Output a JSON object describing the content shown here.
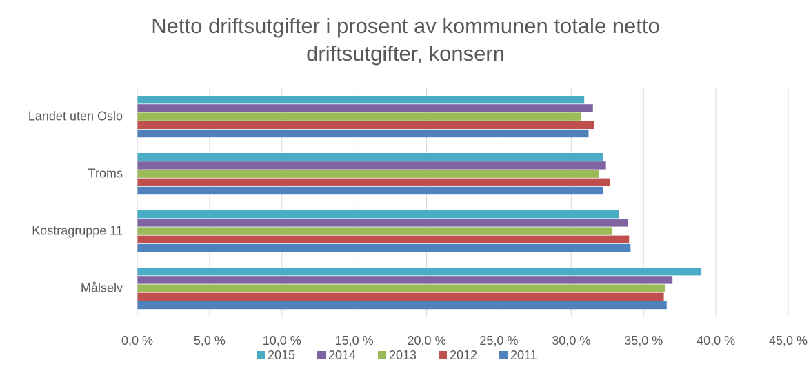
{
  "chart_data": {
    "type": "hbar",
    "title": [
      "Netto driftsutgifter i prosent av kommunen totale netto",
      "driftsutgifter, konsern"
    ],
    "categories": [
      "Landet uten Oslo",
      "Troms",
      "Kostragruppe 11",
      "Målselv"
    ],
    "series": [
      {
        "name": "2015",
        "color": "#4bacc6",
        "values": [
          30.9,
          32.2,
          33.3,
          39.0
        ]
      },
      {
        "name": "2014",
        "color": "#8064a2",
        "values": [
          31.5,
          32.4,
          33.9,
          37.0
        ]
      },
      {
        "name": "2013",
        "color": "#9bbb59",
        "values": [
          30.7,
          31.9,
          32.8,
          36.5
        ]
      },
      {
        "name": "2012",
        "color": "#c0504d",
        "values": [
          31.6,
          32.7,
          34.0,
          36.4
        ]
      },
      {
        "name": "2011",
        "color": "#4f81bd",
        "values": [
          31.2,
          32.2,
          34.1,
          36.6
        ]
      }
    ],
    "xlim": [
      0,
      45
    ],
    "xticks": [
      {
        "value": 0,
        "label": "0,0 %"
      },
      {
        "value": 5,
        "label": "5,0 %"
      },
      {
        "value": 10,
        "label": "10,0 %"
      },
      {
        "value": 15,
        "label": "15,0 %"
      },
      {
        "value": 20,
        "label": "20,0 %"
      },
      {
        "value": 25,
        "label": "25,0 %"
      },
      {
        "value": 30,
        "label": "30,0 %"
      },
      {
        "value": 35,
        "label": "35,0 %"
      },
      {
        "value": 40,
        "label": "40,0 %"
      },
      {
        "value": 45,
        "label": "45,0 %"
      }
    ],
    "grid": true
  }
}
